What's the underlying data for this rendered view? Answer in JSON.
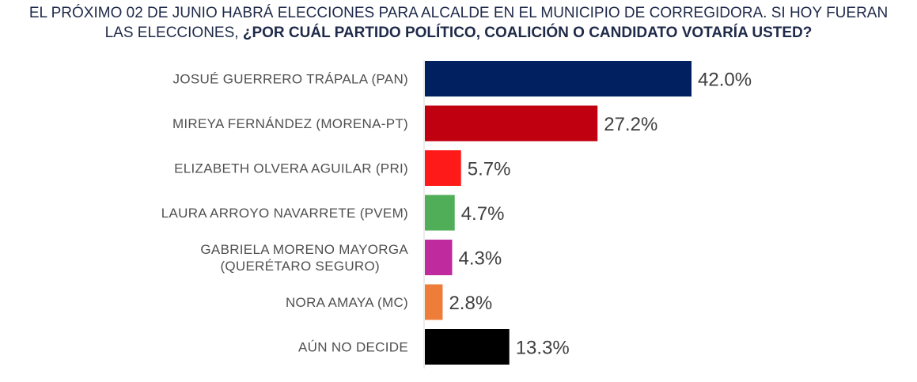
{
  "title": {
    "line1": "EL PRÓXIMO 02 DE JUNIO HABRÁ ELECCIONES PARA ALCALDE EN EL MUNICIPIO DE CORREGIDORA. SI HOY FUERAN",
    "line2_plain": "LAS ELECCIONES, ",
    "line2_bold": "¿POR CUÁL PARTIDO POLÍTICO, COALICIÓN O CANDIDATO VOTARÍA USTED?"
  },
  "chart_data": {
    "type": "bar",
    "orientation": "horizontal",
    "categories": [
      [
        "JOSUÉ GUERRERO TRÁPALA (PAN)"
      ],
      [
        "MIREYA FERNÁNDEZ (MORENA-PT)"
      ],
      [
        "ELIZABETH OLVERA AGUILAR  (PRI)"
      ],
      [
        "LAURA ARROYO NAVARRETE  (PVEM)"
      ],
      [
        "GABRIELA MORENO MAYORGA",
        "(QUERÉTARO SEGURO)"
      ],
      [
        "NORA AMAYA (MC)"
      ],
      [
        "AÚN NO DECIDE"
      ]
    ],
    "values": [
      42.0,
      27.2,
      5.7,
      4.7,
      4.3,
      2.8,
      13.3
    ],
    "value_labels": [
      "42.0%",
      "27.2%",
      "5.7%",
      "4.7%",
      "4.3%",
      "2.8%",
      "13.3%"
    ],
    "colors": [
      "#002060",
      "#c00010",
      "#ff1a1a",
      "#4fae57",
      "#bf2a9e",
      "#ee7d3a",
      "#000000"
    ],
    "xlim": [
      0,
      42.0
    ],
    "grid": false,
    "legend": false
  }
}
